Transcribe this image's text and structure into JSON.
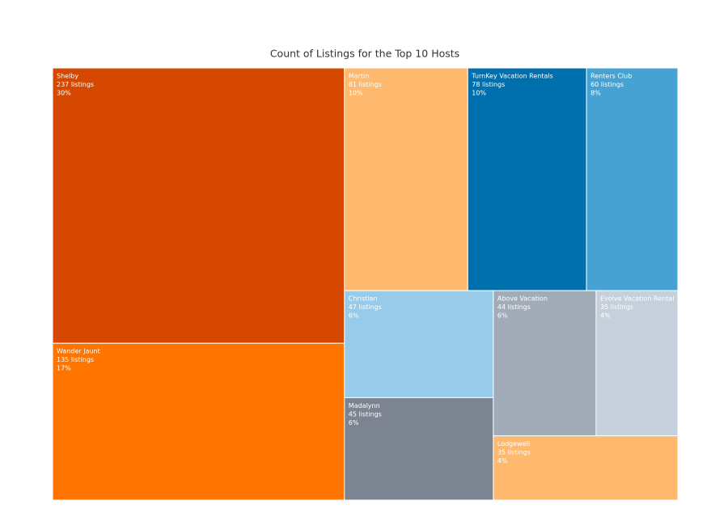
{
  "chart_data": {
    "type": "treemap",
    "title": "Count of Listings for the Top 10 Hosts",
    "categories": [
      "Shelby",
      "Wander Jaunt",
      "Martin",
      "TurnKey Vacation Rentals",
      "Renters Club",
      "Christian",
      "Madalynn",
      "Above Vacation",
      "Evolve Vacation Rental",
      "Lodgewell"
    ],
    "values": [
      237,
      135,
      81,
      78,
      60,
      47,
      45,
      44,
      35,
      35
    ],
    "value_labels": [
      "237 listings",
      "135 listings",
      "81 listings",
      "78 listings",
      "60 listings",
      "47 listings",
      "45 listings",
      "44 listings",
      "35 listings",
      "35 listings"
    ],
    "percent_labels": [
      "30%",
      "17%",
      "10%",
      "10%",
      "8%",
      "6%",
      "6%",
      "6%",
      "4%",
      "4%"
    ],
    "colors": [
      "#d64800",
      "#ff7500",
      "#ffb96e",
      "#006fae",
      "#45a2d3",
      "#98cbea",
      "#7b8490",
      "#a2acb8",
      "#c5d0dc",
      "#ffb96e"
    ]
  }
}
